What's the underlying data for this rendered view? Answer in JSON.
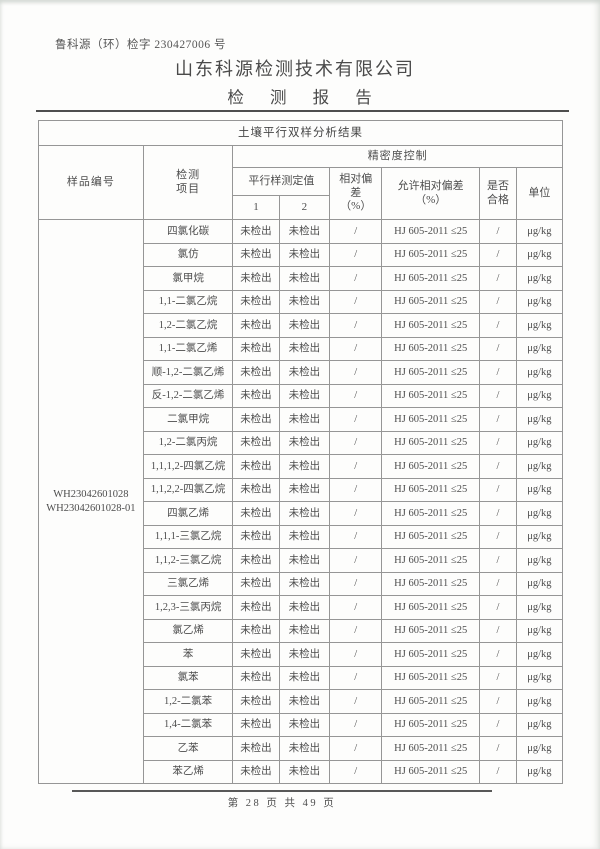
{
  "page": {
    "report_no": "鲁科源（环）检字 230427006 号",
    "company": "山东科源检测技术有限公司",
    "report_title": "检 测 报 告",
    "footer": "第 28 页 共 49 页"
  },
  "table": {
    "banner": "土壤平行双样分析结果",
    "headers": {
      "sample_id": "样品编号",
      "item": "检测\n项目",
      "precision": "精密度控制",
      "parallel": "平行样测定值",
      "sub1": "1",
      "sub2": "2",
      "rel_dev": "相对偏\n差\n（%）",
      "allowed_dev": "允许相对偏差\n（%）",
      "qualified": "是否\n合格",
      "unit": "单位"
    },
    "sample_ids": [
      "WH23042601028",
      "WH23042601028-01"
    ],
    "rows": [
      {
        "item": "四氯化碳",
        "v1": "未检出",
        "v2": "未检出",
        "rel": "/",
        "allowed": "HJ 605-2011 ≤25",
        "pass": "/",
        "unit": "μg/kg"
      },
      {
        "item": "氯仿",
        "v1": "未检出",
        "v2": "未检出",
        "rel": "/",
        "allowed": "HJ 605-2011 ≤25",
        "pass": "/",
        "unit": "μg/kg"
      },
      {
        "item": "氯甲烷",
        "v1": "未检出",
        "v2": "未检出",
        "rel": "/",
        "allowed": "HJ 605-2011 ≤25",
        "pass": "/",
        "unit": "μg/kg"
      },
      {
        "item": "1,1-二氯乙烷",
        "v1": "未检出",
        "v2": "未检出",
        "rel": "/",
        "allowed": "HJ 605-2011 ≤25",
        "pass": "/",
        "unit": "μg/kg"
      },
      {
        "item": "1,2-二氯乙烷",
        "v1": "未检出",
        "v2": "未检出",
        "rel": "/",
        "allowed": "HJ 605-2011 ≤25",
        "pass": "/",
        "unit": "μg/kg"
      },
      {
        "item": "1,1-二氯乙烯",
        "v1": "未检出",
        "v2": "未检出",
        "rel": "/",
        "allowed": "HJ 605-2011 ≤25",
        "pass": "/",
        "unit": "μg/kg"
      },
      {
        "item": "顺-1,2-二氯乙烯",
        "v1": "未检出",
        "v2": "未检出",
        "rel": "/",
        "allowed": "HJ 605-2011 ≤25",
        "pass": "/",
        "unit": "μg/kg"
      },
      {
        "item": "反-1,2-二氯乙烯",
        "v1": "未检出",
        "v2": "未检出",
        "rel": "/",
        "allowed": "HJ 605-2011 ≤25",
        "pass": "/",
        "unit": "μg/kg"
      },
      {
        "item": "二氯甲烷",
        "v1": "未检出",
        "v2": "未检出",
        "rel": "/",
        "allowed": "HJ 605-2011 ≤25",
        "pass": "/",
        "unit": "μg/kg"
      },
      {
        "item": "1,2-二氯丙烷",
        "v1": "未检出",
        "v2": "未检出",
        "rel": "/",
        "allowed": "HJ 605-2011 ≤25",
        "pass": "/",
        "unit": "μg/kg"
      },
      {
        "item": "1,1,1,2-四氯乙烷",
        "v1": "未检出",
        "v2": "未检出",
        "rel": "/",
        "allowed": "HJ 605-2011 ≤25",
        "pass": "/",
        "unit": "μg/kg"
      },
      {
        "item": "1,1,2,2-四氯乙烷",
        "v1": "未检出",
        "v2": "未检出",
        "rel": "/",
        "allowed": "HJ 605-2011 ≤25",
        "pass": "/",
        "unit": "μg/kg"
      },
      {
        "item": "四氯乙烯",
        "v1": "未检出",
        "v2": "未检出",
        "rel": "/",
        "allowed": "HJ 605-2011 ≤25",
        "pass": "/",
        "unit": "μg/kg"
      },
      {
        "item": "1,1,1-三氯乙烷",
        "v1": "未检出",
        "v2": "未检出",
        "rel": "/",
        "allowed": "HJ 605-2011 ≤25",
        "pass": "/",
        "unit": "μg/kg"
      },
      {
        "item": "1,1,2-三氯乙烷",
        "v1": "未检出",
        "v2": "未检出",
        "rel": "/",
        "allowed": "HJ 605-2011 ≤25",
        "pass": "/",
        "unit": "μg/kg"
      },
      {
        "item": "三氯乙烯",
        "v1": "未检出",
        "v2": "未检出",
        "rel": "/",
        "allowed": "HJ 605-2011 ≤25",
        "pass": "/",
        "unit": "μg/kg"
      },
      {
        "item": "1,2,3-三氯丙烷",
        "v1": "未检出",
        "v2": "未检出",
        "rel": "/",
        "allowed": "HJ 605-2011 ≤25",
        "pass": "/",
        "unit": "μg/kg"
      },
      {
        "item": "氯乙烯",
        "v1": "未检出",
        "v2": "未检出",
        "rel": "/",
        "allowed": "HJ 605-2011 ≤25",
        "pass": "/",
        "unit": "μg/kg"
      },
      {
        "item": "苯",
        "v1": "未检出",
        "v2": "未检出",
        "rel": "/",
        "allowed": "HJ 605-2011 ≤25",
        "pass": "/",
        "unit": "μg/kg"
      },
      {
        "item": "氯苯",
        "v1": "未检出",
        "v2": "未检出",
        "rel": "/",
        "allowed": "HJ 605-2011 ≤25",
        "pass": "/",
        "unit": "μg/kg"
      },
      {
        "item": "1,2-二氯苯",
        "v1": "未检出",
        "v2": "未检出",
        "rel": "/",
        "allowed": "HJ 605-2011 ≤25",
        "pass": "/",
        "unit": "μg/kg"
      },
      {
        "item": "1,4-二氯苯",
        "v1": "未检出",
        "v2": "未检出",
        "rel": "/",
        "allowed": "HJ 605-2011 ≤25",
        "pass": "/",
        "unit": "μg/kg"
      },
      {
        "item": "乙苯",
        "v1": "未检出",
        "v2": "未检出",
        "rel": "/",
        "allowed": "HJ 605-2011 ≤25",
        "pass": "/",
        "unit": "μg/kg"
      },
      {
        "item": "苯乙烯",
        "v1": "未检出",
        "v2": "未检出",
        "rel": "/",
        "allowed": "HJ 605-2011 ≤25",
        "pass": "/",
        "unit": "μg/kg"
      }
    ]
  }
}
